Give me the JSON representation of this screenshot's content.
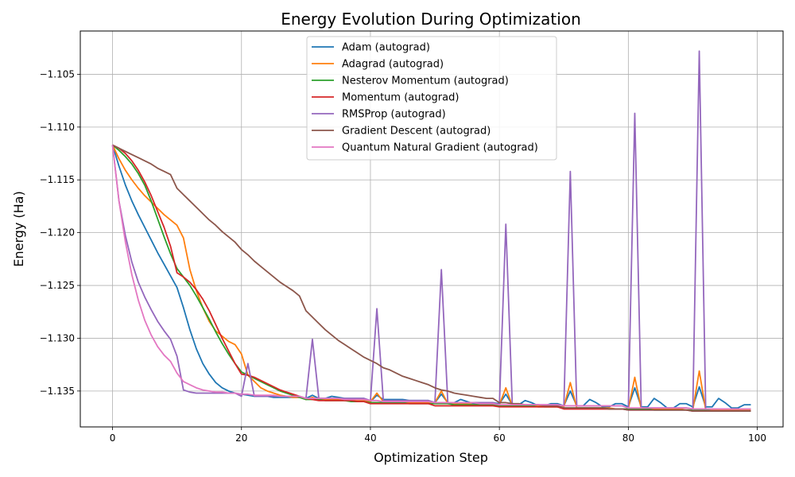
{
  "chart_data": {
    "type": "line",
    "title": "Energy Evolution During Optimization",
    "xlabel": "Optimization Step",
    "ylabel": "Energy (Ha)",
    "xlim": [
      -5,
      104
    ],
    "ylim": [
      -1.1384,
      -1.1009
    ],
    "xticks": [
      0,
      20,
      40,
      60,
      80,
      100
    ],
    "xtick_labels": [
      "0",
      "20",
      "40",
      "60",
      "80",
      "100"
    ],
    "yticks": [
      -1.105,
      -1.11,
      -1.115,
      -1.12,
      -1.125,
      -1.13,
      -1.135
    ],
    "ytick_labels": [
      "−1.105",
      "−1.110",
      "−1.115",
      "−1.120",
      "−1.125",
      "−1.130",
      "−1.135"
    ],
    "grid": true,
    "legend_position": "top-center",
    "series": [
      {
        "name": "Adam (autograd)",
        "color": "#1f77b4",
        "values": [
          -1.1117,
          -1.1137,
          -1.1155,
          -1.117,
          -1.1183,
          -1.1195,
          -1.1207,
          -1.1219,
          -1.123,
          -1.1241,
          -1.1252,
          -1.1271,
          -1.1292,
          -1.131,
          -1.1324,
          -1.1334,
          -1.1342,
          -1.1347,
          -1.135,
          -1.1352,
          -1.1353,
          -1.1354,
          -1.1355,
          -1.1355,
          -1.1355,
          -1.1356,
          -1.1356,
          -1.1356,
          -1.1356,
          -1.1356,
          -1.1357,
          -1.1354,
          -1.1357,
          -1.1357,
          -1.1355,
          -1.1356,
          -1.1357,
          -1.1357,
          -1.1357,
          -1.1357,
          -1.136,
          -1.1354,
          -1.1358,
          -1.1358,
          -1.1358,
          -1.1358,
          -1.1359,
          -1.1359,
          -1.1359,
          -1.1359,
          -1.1361,
          -1.1353,
          -1.1361,
          -1.1361,
          -1.1358,
          -1.136,
          -1.1362,
          -1.1362,
          -1.1362,
          -1.1361,
          -1.1362,
          -1.1353,
          -1.1363,
          -1.1363,
          -1.1359,
          -1.1361,
          -1.1364,
          -1.1364,
          -1.1362,
          -1.1362,
          -1.1364,
          -1.135,
          -1.1364,
          -1.1364,
          -1.1358,
          -1.1361,
          -1.1365,
          -1.1365,
          -1.1362,
          -1.1362,
          -1.1365,
          -1.1347,
          -1.1365,
          -1.1365,
          -1.1357,
          -1.1361,
          -1.1366,
          -1.1366,
          -1.1362,
          -1.1362,
          -1.1365,
          -1.1346,
          -1.1365,
          -1.1365,
          -1.1357,
          -1.1361,
          -1.1366,
          -1.1366,
          -1.1363,
          -1.1363
        ]
      },
      {
        "name": "Adagrad (autograd)",
        "color": "#ff7f0e",
        "values": [
          -1.1117,
          -1.113,
          -1.1141,
          -1.115,
          -1.1158,
          -1.1165,
          -1.1171,
          -1.1177,
          -1.1183,
          -1.1188,
          -1.1193,
          -1.1205,
          -1.1235,
          -1.1255,
          -1.1271,
          -1.1284,
          -1.1293,
          -1.1298,
          -1.1303,
          -1.1306,
          -1.1315,
          -1.1335,
          -1.1341,
          -1.1347,
          -1.135,
          -1.1352,
          -1.1354,
          -1.1355,
          -1.1356,
          -1.1356,
          -1.1358,
          -1.1356,
          -1.1358,
          -1.1358,
          -1.1358,
          -1.1358,
          -1.1359,
          -1.1359,
          -1.1359,
          -1.1359,
          -1.136,
          -1.1352,
          -1.136,
          -1.136,
          -1.136,
          -1.136,
          -1.1361,
          -1.1361,
          -1.1361,
          -1.1361,
          -1.1361,
          -1.135,
          -1.1362,
          -1.1362,
          -1.1362,
          -1.1362,
          -1.1363,
          -1.1363,
          -1.1363,
          -1.1363,
          -1.1363,
          -1.1347,
          -1.1364,
          -1.1364,
          -1.1364,
          -1.1364,
          -1.1364,
          -1.1365,
          -1.1365,
          -1.1365,
          -1.1365,
          -1.1342,
          -1.1366,
          -1.1366,
          -1.1366,
          -1.1366,
          -1.1366,
          -1.1366,
          -1.1367,
          -1.1367,
          -1.1367,
          -1.1337,
          -1.1367,
          -1.1367,
          -1.1367,
          -1.1367,
          -1.1367,
          -1.1367,
          -1.1367,
          -1.1368,
          -1.1368,
          -1.1331,
          -1.1368,
          -1.1368,
          -1.1368,
          -1.1368,
          -1.1368,
          -1.1368,
          -1.1368,
          -1.1368
        ]
      },
      {
        "name": "Nesterov Momentum (autograd)",
        "color": "#2ca02c",
        "values": [
          -1.1117,
          -1.1122,
          -1.1128,
          -1.1135,
          -1.1144,
          -1.1155,
          -1.117,
          -1.1187,
          -1.1204,
          -1.122,
          -1.1234,
          -1.1242,
          -1.125,
          -1.126,
          -1.1271,
          -1.1282,
          -1.1294,
          -1.1305,
          -1.1315,
          -1.1324,
          -1.1332,
          -1.1335,
          -1.1338,
          -1.1341,
          -1.1344,
          -1.1347,
          -1.135,
          -1.1352,
          -1.1354,
          -1.1356,
          -1.1358,
          -1.1358,
          -1.1358,
          -1.1359,
          -1.1359,
          -1.1359,
          -1.1359,
          -1.136,
          -1.136,
          -1.136,
          -1.1361,
          -1.1361,
          -1.1361,
          -1.1361,
          -1.1361,
          -1.1361,
          -1.1362,
          -1.1362,
          -1.1362,
          -1.1362,
          -1.1362,
          -1.1362,
          -1.1362,
          -1.1363,
          -1.1363,
          -1.1363,
          -1.1363,
          -1.1363,
          -1.1363,
          -1.1363,
          -1.1364,
          -1.1364,
          -1.1364,
          -1.1364,
          -1.1364,
          -1.1364,
          -1.1365,
          -1.1365,
          -1.1365,
          -1.1365,
          -1.1366,
          -1.1366,
          -1.1366,
          -1.1366,
          -1.1366,
          -1.1366,
          -1.1366,
          -1.1367,
          -1.1367,
          -1.1367,
          -1.1367,
          -1.1367,
          -1.1367,
          -1.1367,
          -1.1368,
          -1.1368,
          -1.1368,
          -1.1368,
          -1.1368,
          -1.1368,
          -1.1368,
          -1.1368,
          -1.1368,
          -1.1369,
          -1.1369,
          -1.1369,
          -1.1369,
          -1.1369,
          -1.1369,
          -1.1369
        ]
      },
      {
        "name": "Momentum (autograd)",
        "color": "#d62728",
        "values": [
          -1.1117,
          -1.112,
          -1.1125,
          -1.1132,
          -1.1141,
          -1.1152,
          -1.1165,
          -1.118,
          -1.1195,
          -1.1213,
          -1.1238,
          -1.1242,
          -1.1247,
          -1.1254,
          -1.1263,
          -1.1274,
          -1.1287,
          -1.13,
          -1.1312,
          -1.1324,
          -1.1334,
          -1.1335,
          -1.1337,
          -1.134,
          -1.1343,
          -1.1346,
          -1.1349,
          -1.1351,
          -1.1353,
          -1.1355,
          -1.1357,
          -1.1358,
          -1.1359,
          -1.1359,
          -1.1359,
          -1.1359,
          -1.1359,
          -1.1359,
          -1.136,
          -1.136,
          -1.1362,
          -1.1362,
          -1.1362,
          -1.1362,
          -1.1362,
          -1.1362,
          -1.1362,
          -1.1362,
          -1.1362,
          -1.1362,
          -1.1364,
          -1.1364,
          -1.1364,
          -1.1364,
          -1.1364,
          -1.1364,
          -1.1364,
          -1.1364,
          -1.1364,
          -1.1364,
          -1.1365,
          -1.1365,
          -1.1365,
          -1.1365,
          -1.1365,
          -1.1365,
          -1.1365,
          -1.1365,
          -1.1365,
          -1.1365,
          -1.1367,
          -1.1367,
          -1.1367,
          -1.1367,
          -1.1367,
          -1.1367,
          -1.1367,
          -1.1367,
          -1.1367,
          -1.1367,
          -1.1368,
          -1.1368,
          -1.1368,
          -1.1368,
          -1.1368,
          -1.1368,
          -1.1368,
          -1.1368,
          -1.1368,
          -1.1368,
          -1.1369,
          -1.1369,
          -1.1369,
          -1.1369,
          -1.1369,
          -1.1369,
          -1.1369,
          -1.1369,
          -1.1369,
          -1.1369
        ]
      },
      {
        "name": "RMSProp (autograd)",
        "color": "#9467bd",
        "values": [
          -1.1117,
          -1.117,
          -1.1203,
          -1.1228,
          -1.1247,
          -1.1261,
          -1.1273,
          -1.1284,
          -1.1293,
          -1.1301,
          -1.1317,
          -1.1349,
          -1.1351,
          -1.1352,
          -1.1352,
          -1.1352,
          -1.1352,
          -1.1352,
          -1.1352,
          -1.1352,
          -1.1355,
          -1.1324,
          -1.1355,
          -1.1355,
          -1.1355,
          -1.1355,
          -1.1355,
          -1.1355,
          -1.1355,
          -1.1355,
          -1.1357,
          -1.1301,
          -1.1357,
          -1.1357,
          -1.1357,
          -1.1357,
          -1.1357,
          -1.1357,
          -1.1357,
          -1.1357,
          -1.1359,
          -1.1272,
          -1.1359,
          -1.1359,
          -1.1359,
          -1.1359,
          -1.1359,
          -1.1359,
          -1.1359,
          -1.1359,
          -1.1361,
          -1.1235,
          -1.1361,
          -1.1361,
          -1.1361,
          -1.1361,
          -1.1361,
          -1.1361,
          -1.1361,
          -1.1361,
          -1.1363,
          -1.1192,
          -1.1363,
          -1.1363,
          -1.1363,
          -1.1363,
          -1.1363,
          -1.1363,
          -1.1363,
          -1.1363,
          -1.1364,
          -1.1142,
          -1.1364,
          -1.1364,
          -1.1364,
          -1.1364,
          -1.1364,
          -1.1364,
          -1.1364,
          -1.1364,
          -1.1366,
          -1.1087,
          -1.1366,
          -1.1366,
          -1.1366,
          -1.1366,
          -1.1366,
          -1.1366,
          -1.1366,
          -1.1366,
          -1.1367,
          -1.1028,
          -1.1367,
          -1.1367,
          -1.1367,
          -1.1367,
          -1.1367,
          -1.1367,
          -1.1367,
          -1.1367
        ]
      },
      {
        "name": "Gradient Descent (autograd)",
        "color": "#8c564b",
        "values": [
          -1.1117,
          -1.112,
          -1.1123,
          -1.1126,
          -1.1129,
          -1.1132,
          -1.1135,
          -1.1139,
          -1.1142,
          -1.1145,
          -1.1158,
          -1.1164,
          -1.117,
          -1.1176,
          -1.1182,
          -1.1188,
          -1.1193,
          -1.1199,
          -1.1204,
          -1.1209,
          -1.1216,
          -1.1221,
          -1.1227,
          -1.1232,
          -1.1237,
          -1.1242,
          -1.1247,
          -1.1251,
          -1.1255,
          -1.126,
          -1.1274,
          -1.128,
          -1.1286,
          -1.1292,
          -1.1297,
          -1.1302,
          -1.1306,
          -1.131,
          -1.1314,
          -1.1318,
          -1.1321,
          -1.1324,
          -1.1328,
          -1.133,
          -1.1333,
          -1.1336,
          -1.1338,
          -1.134,
          -1.1342,
          -1.1344,
          -1.1347,
          -1.1349,
          -1.135,
          -1.1352,
          -1.1353,
          -1.1354,
          -1.1355,
          -1.1356,
          -1.1357,
          -1.1357,
          -1.1361,
          -1.1361,
          -1.1362,
          -1.1362,
          -1.1363,
          -1.1363,
          -1.1363,
          -1.1364,
          -1.1364,
          -1.1364,
          -1.1366,
          -1.1366,
          -1.1366,
          -1.1366,
          -1.1366,
          -1.1366,
          -1.1366,
          -1.1367,
          -1.1367,
          -1.1367,
          -1.1368,
          -1.1368,
          -1.1368,
          -1.1368,
          -1.1368,
          -1.1368,
          -1.1368,
          -1.1368,
          -1.1368,
          -1.1368,
          -1.1369,
          -1.1369,
          -1.1369,
          -1.1369,
          -1.1369,
          -1.1369,
          -1.1369,
          -1.1369,
          -1.1369,
          -1.1369
        ]
      },
      {
        "name": "Quantum Natural Gradient (autograd)",
        "color": "#e377c2",
        "values": [
          -1.1117,
          -1.117,
          -1.1209,
          -1.124,
          -1.1264,
          -1.1283,
          -1.1297,
          -1.1308,
          -1.1316,
          -1.1322,
          -1.1333,
          -1.1341,
          -1.1344,
          -1.1347,
          -1.1349,
          -1.135,
          -1.1351,
          -1.1351,
          -1.1352,
          -1.1352,
          -1.1353,
          -1.1353,
          -1.1354,
          -1.1354,
          -1.1354,
          -1.1354,
          -1.1355,
          -1.1355,
          -1.1355,
          -1.1355,
          -1.1357,
          -1.1357,
          -1.1357,
          -1.1357,
          -1.1357,
          -1.1357,
          -1.1358,
          -1.1358,
          -1.1358,
          -1.1358,
          -1.1359,
          -1.1359,
          -1.136,
          -1.136,
          -1.136,
          -1.136,
          -1.136,
          -1.136,
          -1.136,
          -1.136,
          -1.1361,
          -1.1361,
          -1.1361,
          -1.1361,
          -1.1361,
          -1.1361,
          -1.1361,
          -1.1362,
          -1.1362,
          -1.1362,
          -1.1363,
          -1.1363,
          -1.1363,
          -1.1363,
          -1.1363,
          -1.1363,
          -1.1363,
          -1.1363,
          -1.1363,
          -1.1363,
          -1.1364,
          -1.1364,
          -1.1364,
          -1.1364,
          -1.1364,
          -1.1364,
          -1.1364,
          -1.1364,
          -1.1364,
          -1.1364,
          -1.1366,
          -1.1366,
          -1.1366,
          -1.1366,
          -1.1366,
          -1.1366,
          -1.1366,
          -1.1366,
          -1.1366,
          -1.1366,
          -1.1367,
          -1.1367,
          -1.1367,
          -1.1367,
          -1.1367,
          -1.1367,
          -1.1367,
          -1.1367,
          -1.1367,
          -1.1367
        ]
      }
    ]
  }
}
